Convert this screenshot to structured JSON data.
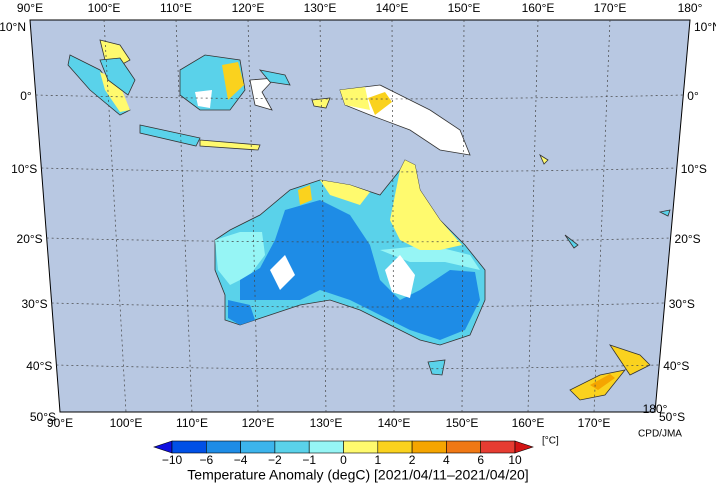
{
  "map": {
    "lon_labels_top": [
      "90°E",
      "100°E",
      "110°E",
      "120°E",
      "130°E",
      "140°E",
      "150°E",
      "160°E",
      "170°E",
      "180°"
    ],
    "lon_labels_bottom": [
      "90°E",
      "100°E",
      "110°E",
      "120°E",
      "130°E",
      "140°E",
      "150°E",
      "160°E",
      "170°E",
      "180°"
    ],
    "lat_labels_left": [
      "10°N",
      "0°",
      "10°S",
      "20°S",
      "30°S",
      "40°S",
      "50°S"
    ],
    "lat_labels_right": [
      "10°N",
      "0°",
      "10°S",
      "20°S",
      "30°S",
      "40°S",
      "50°S"
    ],
    "credit": "CPD/JMA"
  },
  "colorbar": {
    "labels": [
      "−10",
      "−6",
      "−4",
      "−2",
      "−1",
      "0",
      "1",
      "2",
      "4",
      "6",
      "10"
    ],
    "colors": [
      "#1010e0",
      "#0050e6",
      "#1e8ce6",
      "#3cb4ec",
      "#5ad2ea",
      "#96f5f5",
      "#fffa6e",
      "#fad21e",
      "#f5a500",
      "#f07814",
      "#e63c32",
      "#d21414"
    ],
    "unit": "[°C]"
  },
  "title": "Temperature Anomaly (degC) [2021/04/11–2021/04/20]"
}
